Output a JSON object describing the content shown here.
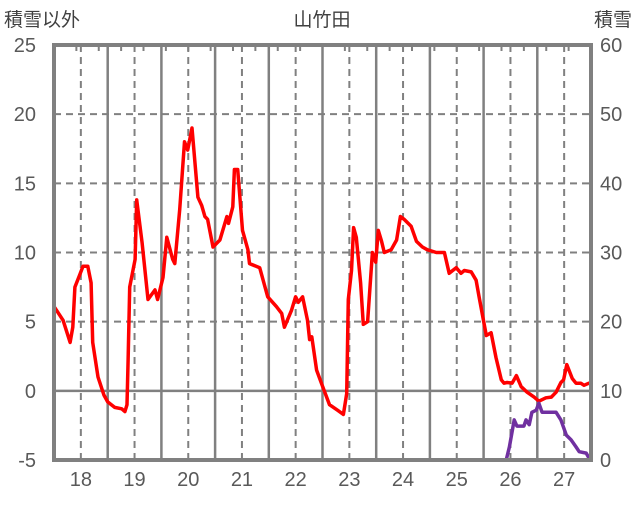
{
  "chart_data": {
    "type": "line",
    "title": "山竹田",
    "ylabel_left": "積雪以外",
    "ylabel_right": "積雪",
    "xlim": [
      17.5,
      27.5
    ],
    "ylim_left": [
      -5,
      25
    ],
    "ylim_right": [
      0,
      60
    ],
    "x_ticks": [
      "18",
      "19",
      "20",
      "21",
      "22",
      "23",
      "24",
      "25",
      "26",
      "27"
    ],
    "x_tick_values": [
      18,
      19,
      20,
      21,
      22,
      23,
      24,
      25,
      26,
      27
    ],
    "y_left_ticks": [
      "25",
      "20",
      "15",
      "10",
      "5",
      "0",
      "-5"
    ],
    "y_left_tick_values": [
      25,
      20,
      15,
      10,
      5,
      0,
      -5
    ],
    "y_right_ticks": [
      "60",
      "50",
      "40",
      "30",
      "20",
      "10",
      "0"
    ],
    "y_right_tick_values": [
      60,
      50,
      40,
      30,
      20,
      10,
      0
    ],
    "grid": true,
    "series": [
      {
        "name": "積雪以外",
        "axis": "left",
        "color": "#ff0000",
        "points": [
          [
            17.5,
            6.1
          ],
          [
            17.67,
            5.1
          ],
          [
            17.8,
            3.5
          ],
          [
            17.85,
            4.6
          ],
          [
            17.89,
            7.5
          ],
          [
            17.98,
            8.4
          ],
          [
            18.04,
            9.0
          ],
          [
            18.13,
            9.0
          ],
          [
            18.19,
            7.8
          ],
          [
            18.22,
            3.5
          ],
          [
            18.32,
            1.0
          ],
          [
            18.43,
            -0.3
          ],
          [
            18.5,
            -0.8
          ],
          [
            18.63,
            -1.2
          ],
          [
            18.76,
            -1.3
          ],
          [
            18.82,
            -1.5
          ],
          [
            18.86,
            -1.0
          ],
          [
            18.88,
            2.2
          ],
          [
            18.91,
            7.5
          ],
          [
            19.01,
            9.5
          ],
          [
            19.04,
            13.8
          ],
          [
            19.14,
            10.7
          ],
          [
            19.25,
            6.6
          ],
          [
            19.38,
            7.3
          ],
          [
            19.43,
            6.6
          ],
          [
            19.53,
            8.2
          ],
          [
            19.6,
            11.1
          ],
          [
            19.71,
            9.5
          ],
          [
            19.75,
            9.2
          ],
          [
            19.84,
            13.1
          ],
          [
            19.93,
            18.0
          ],
          [
            19.99,
            17.4
          ],
          [
            20.07,
            19.0
          ],
          [
            20.18,
            14.0
          ],
          [
            20.25,
            13.4
          ],
          [
            20.31,
            12.6
          ],
          [
            20.36,
            12.4
          ],
          [
            20.46,
            10.4
          ],
          [
            20.59,
            10.9
          ],
          [
            20.72,
            12.6
          ],
          [
            20.75,
            12.1
          ],
          [
            20.83,
            13.3
          ],
          [
            20.86,
            16.0
          ],
          [
            20.92,
            16.0
          ],
          [
            21.01,
            11.6
          ],
          [
            21.11,
            10.2
          ],
          [
            21.14,
            9.2
          ],
          [
            21.33,
            8.9
          ],
          [
            21.48,
            6.8
          ],
          [
            21.64,
            6.1
          ],
          [
            21.74,
            5.6
          ],
          [
            21.79,
            4.6
          ],
          [
            21.92,
            5.8
          ],
          [
            22.0,
            6.8
          ],
          [
            22.05,
            6.4
          ],
          [
            22.13,
            6.8
          ],
          [
            22.22,
            5.1
          ],
          [
            22.26,
            3.7
          ],
          [
            22.3,
            3.9
          ],
          [
            22.39,
            1.5
          ],
          [
            22.48,
            0.55
          ],
          [
            22.63,
            -1.0
          ],
          [
            22.78,
            -1.4
          ],
          [
            22.89,
            -1.7
          ],
          [
            22.95,
            -0.2
          ],
          [
            22.98,
            6.6
          ],
          [
            23.04,
            8.7
          ],
          [
            23.08,
            11.8
          ],
          [
            23.13,
            11.1
          ],
          [
            23.21,
            7.8
          ],
          [
            23.26,
            4.8
          ],
          [
            23.34,
            5.0
          ],
          [
            23.43,
            10.0
          ],
          [
            23.49,
            9.3
          ],
          [
            23.54,
            11.6
          ],
          [
            23.6,
            10.8
          ],
          [
            23.65,
            10.0
          ],
          [
            23.78,
            10.2
          ],
          [
            23.88,
            10.9
          ],
          [
            23.95,
            12.6
          ],
          [
            24.02,
            12.4
          ],
          [
            24.15,
            11.9
          ],
          [
            24.25,
            10.8
          ],
          [
            24.36,
            10.4
          ],
          [
            24.45,
            10.2
          ],
          [
            24.62,
            10.0
          ],
          [
            24.77,
            10.0
          ],
          [
            24.86,
            8.5
          ],
          [
            24.99,
            8.9
          ],
          [
            25.08,
            8.5
          ],
          [
            25.14,
            8.7
          ],
          [
            25.27,
            8.6
          ],
          [
            25.36,
            8.0
          ],
          [
            25.42,
            6.7
          ],
          [
            25.55,
            4.0
          ],
          [
            25.64,
            4.2
          ],
          [
            25.73,
            2.4
          ],
          [
            25.83,
            0.8
          ],
          [
            25.88,
            0.55
          ],
          [
            25.94,
            0.6
          ],
          [
            26.03,
            0.55
          ],
          [
            26.11,
            1.1
          ],
          [
            26.2,
            0.3
          ],
          [
            26.31,
            -0.1
          ],
          [
            26.44,
            -0.45
          ],
          [
            26.53,
            -0.75
          ],
          [
            26.66,
            -0.5
          ],
          [
            26.76,
            -0.45
          ],
          [
            26.85,
            -0.1
          ],
          [
            26.94,
            0.6
          ],
          [
            26.99,
            0.8
          ],
          [
            27.05,
            1.9
          ],
          [
            27.15,
            0.9
          ],
          [
            27.22,
            0.55
          ],
          [
            27.31,
            0.55
          ],
          [
            27.37,
            0.4
          ],
          [
            27.46,
            0.55
          ]
        ]
      },
      {
        "name": "積雪",
        "axis": "right",
        "color": "#7030a0",
        "points": [
          [
            17.5,
            0
          ],
          [
            25.92,
            0
          ],
          [
            25.98,
            1.9
          ],
          [
            26.07,
            5.8
          ],
          [
            26.12,
            4.9
          ],
          [
            26.25,
            4.9
          ],
          [
            26.29,
            5.8
          ],
          [
            26.35,
            5.1
          ],
          [
            26.4,
            6.9
          ],
          [
            26.48,
            7.2
          ],
          [
            26.53,
            8.2
          ],
          [
            26.59,
            6.9
          ],
          [
            26.85,
            6.9
          ],
          [
            26.94,
            5.8
          ],
          [
            27.04,
            3.6
          ],
          [
            27.13,
            2.9
          ],
          [
            27.22,
            1.9
          ],
          [
            27.28,
            1.2
          ],
          [
            27.41,
            1.0
          ],
          [
            27.46,
            0.3
          ]
        ]
      }
    ]
  }
}
